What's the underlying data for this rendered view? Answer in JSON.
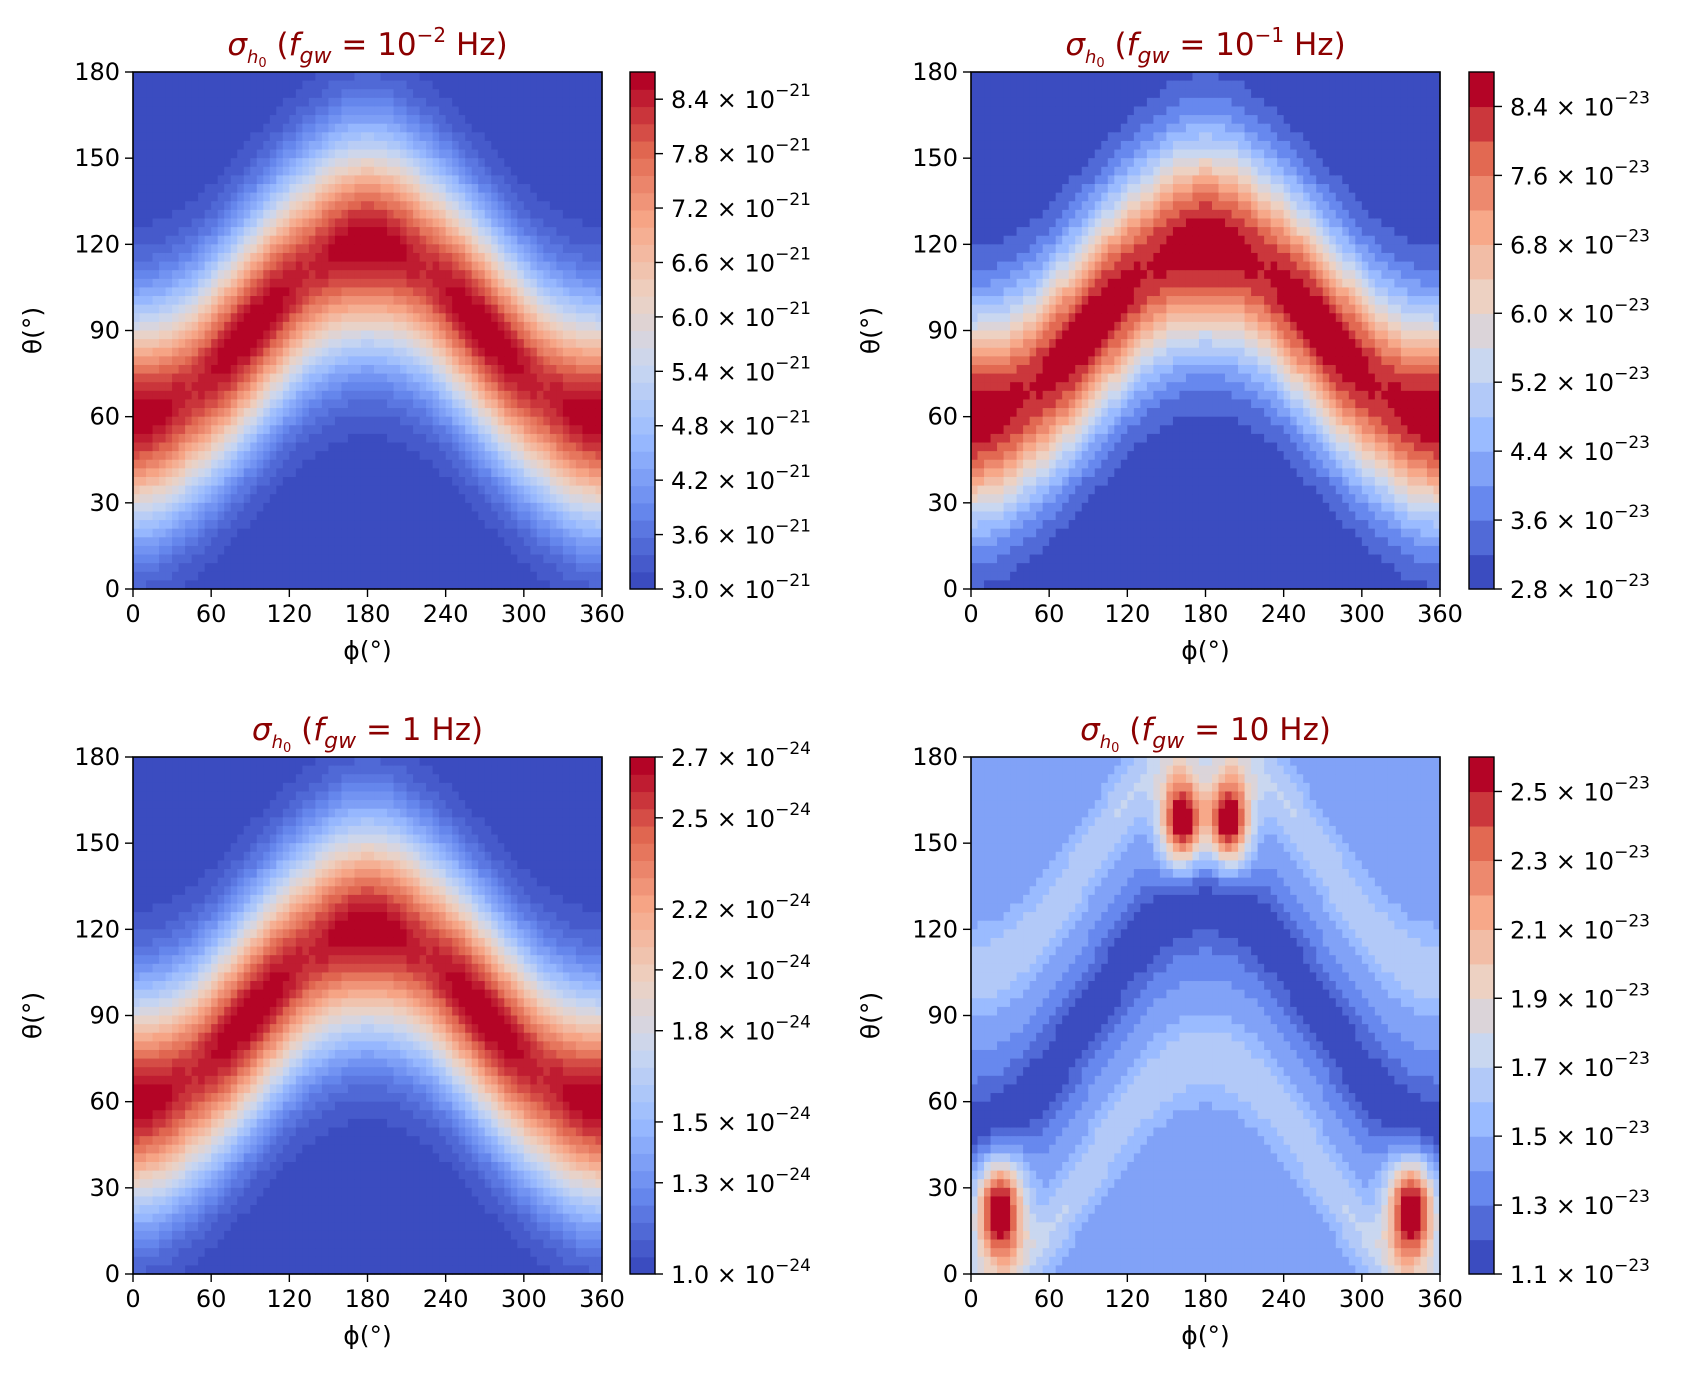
{
  "figure": {
    "title_color": "#8b0000",
    "colormap": [
      "#3b4cc0",
      "#6788ee",
      "#9abbff",
      "#c9d7f0",
      "#edd1c2",
      "#f7a889",
      "#e26952",
      "#b40426"
    ]
  },
  "chart_data": [
    {
      "type": "contour",
      "title": "σh0 (fgw = 10⁻² Hz)",
      "title_parts": {
        "symbol": "σ",
        "sub": "h0",
        "pre": "(f",
        "fsub": "gw",
        "eq": " = ",
        "base": "10",
        "exp": "−2",
        "unit": " Hz)"
      },
      "xlabel": "ϕ(°)",
      "ylabel": "θ(°)",
      "xlim": [
        0,
        360
      ],
      "ylim": [
        0,
        180
      ],
      "xticks": [
        "0",
        "60",
        "120",
        "180",
        "240",
        "300",
        "360"
      ],
      "yticks": [
        "0",
        "30",
        "60",
        "90",
        "120",
        "150",
        "180"
      ],
      "pattern": "band",
      "zlim": [
        3e-21,
        8.7e-21
      ],
      "levels": 30,
      "colorbar": {
        "values": [
          3.0,
          3.6,
          4.2,
          4.8,
          5.4,
          6.0,
          6.6,
          7.2,
          7.8,
          8.4
        ],
        "labels": [
          "3.0",
          "3.6",
          "4.2",
          "4.8",
          "5.4",
          "6.0",
          "6.6",
          "7.2",
          "7.8",
          "8.4"
        ],
        "exponent": "−21",
        "scale": 1e-21
      }
    },
    {
      "type": "contour",
      "title": "σh0 (fgw = 10⁻¹ Hz)",
      "title_parts": {
        "symbol": "σ",
        "sub": "h0",
        "pre": "(f",
        "fsub": "gw",
        "eq": " = ",
        "base": "10",
        "exp": "−1",
        "unit": " Hz)"
      },
      "xlabel": "ϕ(°)",
      "ylabel": "θ(°)",
      "xlim": [
        0,
        360
      ],
      "ylim": [
        0,
        180
      ],
      "xticks": [
        "0",
        "60",
        "120",
        "180",
        "240",
        "300",
        "360"
      ],
      "yticks": [
        "0",
        "30",
        "60",
        "90",
        "120",
        "150",
        "180"
      ],
      "pattern": "band",
      "zlim": [
        2.8e-23,
        8.8e-23
      ],
      "levels": 15,
      "colorbar": {
        "values": [
          2.8,
          3.6,
          4.4,
          5.2,
          6.0,
          6.8,
          7.6,
          8.4
        ],
        "labels": [
          "2.8",
          "3.6",
          "4.4",
          "5.2",
          "6.0",
          "6.8",
          "7.6",
          "8.4"
        ],
        "exponent": "−23",
        "scale": 1e-23
      }
    },
    {
      "type": "contour",
      "title": "σh0 (fgw = 1 Hz)",
      "title_parts": {
        "symbol": "σ",
        "sub": "h0",
        "pre": "(f",
        "fsub": "gw",
        "eq": " = ",
        "base": "1",
        "exp": "",
        "unit": " Hz)"
      },
      "xlabel": "ϕ(°)",
      "ylabel": "θ(°)",
      "xlim": [
        0,
        360
      ],
      "ylim": [
        0,
        180
      ],
      "xticks": [
        "0",
        "60",
        "120",
        "180",
        "240",
        "300",
        "360"
      ],
      "yticks": [
        "0",
        "30",
        "60",
        "90",
        "120",
        "150",
        "180"
      ],
      "pattern": "band",
      "zlim": [
        1e-24,
        2.7e-24
      ],
      "levels": 30,
      "colorbar": {
        "values": [
          1.0,
          1.3,
          1.5,
          1.8,
          2.0,
          2.2,
          2.5,
          2.7
        ],
        "labels": [
          "1.0",
          "1.3",
          "1.5",
          "1.8",
          "2.0",
          "2.2",
          "2.5",
          "2.7"
        ],
        "exponent": "−24",
        "scale": 1e-24
      }
    },
    {
      "type": "contour",
      "title": "σh0 (fgw = 10 Hz)",
      "title_parts": {
        "symbol": "σ",
        "sub": "h0",
        "pre": "(f",
        "fsub": "gw",
        "eq": " = ",
        "base": "10",
        "exp": "",
        "unit": " Hz)"
      },
      "xlabel": "ϕ(°)",
      "ylabel": "θ(°)",
      "xlim": [
        0,
        360
      ],
      "ylim": [
        0,
        180
      ],
      "xticks": [
        "0",
        "60",
        "120",
        "180",
        "240",
        "300",
        "360"
      ],
      "yticks": [
        "0",
        "30",
        "60",
        "90",
        "120",
        "150",
        "180"
      ],
      "pattern": "lobes",
      "zlim": [
        1.1e-23,
        2.6e-23
      ],
      "levels": 15,
      "colorbar": {
        "values": [
          1.1,
          1.3,
          1.5,
          1.7,
          1.9,
          2.1,
          2.3,
          2.5
        ],
        "labels": [
          "1.1",
          "1.3",
          "1.5",
          "1.7",
          "1.9",
          "2.1",
          "2.3",
          "2.5"
        ],
        "exponent": "−23",
        "scale": 1e-23
      }
    }
  ]
}
